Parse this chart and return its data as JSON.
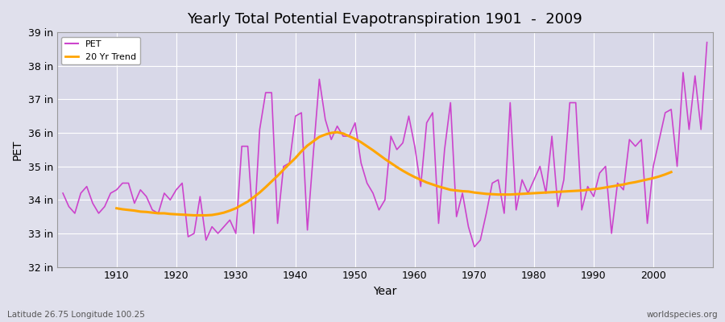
{
  "title": "Yearly Total Potential Evapotranspiration 1901  -  2009",
  "xlabel": "Year",
  "ylabel": "PET",
  "subtitle_left": "Latitude 26.75 Longitude 100.25",
  "subtitle_right": "worldspecies.org",
  "pet_color": "#CC44CC",
  "trend_color": "#FFA500",
  "background_color": "#E0E0EC",
  "plot_bg_color": "#D8D8E8",
  "grid_color": "#FFFFFF",
  "ylim": [
    32,
    39
  ],
  "yticks": [
    32,
    33,
    34,
    35,
    36,
    37,
    38,
    39
  ],
  "ytick_labels": [
    "32 in",
    "33 in",
    "34 in",
    "35 in",
    "36 in",
    "37 in",
    "38 in",
    "39 in"
  ],
  "xlim_left": 1900,
  "xlim_right": 2010,
  "xticks": [
    1910,
    1920,
    1930,
    1940,
    1950,
    1960,
    1970,
    1980,
    1990,
    2000
  ],
  "years": [
    1901,
    1902,
    1903,
    1904,
    1905,
    1906,
    1907,
    1908,
    1909,
    1910,
    1911,
    1912,
    1913,
    1914,
    1915,
    1916,
    1917,
    1918,
    1919,
    1920,
    1921,
    1922,
    1923,
    1924,
    1925,
    1926,
    1927,
    1928,
    1929,
    1930,
    1931,
    1932,
    1933,
    1934,
    1935,
    1936,
    1937,
    1938,
    1939,
    1940,
    1941,
    1942,
    1943,
    1944,
    1945,
    1946,
    1947,
    1948,
    1949,
    1950,
    1951,
    1952,
    1953,
    1954,
    1955,
    1956,
    1957,
    1958,
    1959,
    1960,
    1961,
    1962,
    1963,
    1964,
    1965,
    1966,
    1967,
    1968,
    1969,
    1970,
    1971,
    1972,
    1973,
    1974,
    1975,
    1976,
    1977,
    1978,
    1979,
    1980,
    1981,
    1982,
    1983,
    1984,
    1985,
    1986,
    1987,
    1988,
    1989,
    1990,
    1991,
    1992,
    1993,
    1994,
    1995,
    1996,
    1997,
    1998,
    1999,
    2000,
    2001,
    2002,
    2003,
    2004,
    2005,
    2006,
    2007,
    2008,
    2009
  ],
  "pet_values": [
    34.2,
    33.8,
    33.6,
    34.2,
    34.4,
    33.9,
    33.6,
    33.8,
    34.2,
    34.3,
    34.5,
    34.5,
    33.9,
    34.3,
    34.1,
    33.7,
    33.6,
    34.2,
    34.0,
    34.3,
    34.5,
    32.9,
    33.0,
    34.1,
    32.8,
    33.2,
    33.0,
    33.2,
    33.4,
    33.0,
    35.6,
    35.6,
    33.0,
    36.1,
    37.2,
    37.2,
    33.3,
    35.0,
    35.1,
    36.5,
    36.6,
    33.1,
    35.4,
    37.6,
    36.4,
    35.8,
    36.2,
    35.9,
    35.9,
    36.3,
    35.1,
    34.5,
    34.2,
    33.7,
    34.0,
    35.9,
    35.5,
    35.7,
    36.5,
    35.6,
    34.4,
    36.3,
    36.6,
    33.3,
    35.5,
    36.9,
    33.5,
    34.2,
    33.2,
    32.6,
    32.8,
    33.6,
    34.5,
    34.6,
    33.6,
    36.9,
    33.7,
    34.6,
    34.2,
    34.6,
    35.0,
    34.2,
    35.9,
    33.8,
    34.6,
    36.9,
    36.9,
    33.7,
    34.4,
    34.1,
    34.8,
    35.0,
    33.0,
    34.5,
    34.3,
    35.8,
    35.6,
    35.8,
    33.3,
    35.0,
    35.8,
    36.6,
    36.7,
    35.0,
    37.8,
    36.1,
    37.7,
    36.1,
    38.7
  ],
  "trend_years": [
    1910,
    1911,
    1912,
    1913,
    1914,
    1915,
    1916,
    1917,
    1918,
    1919,
    1920,
    1921,
    1922,
    1923,
    1924,
    1925,
    1926,
    1927,
    1928,
    1929,
    1930,
    1931,
    1932,
    1933,
    1934,
    1935,
    1936,
    1937,
    1938,
    1939,
    1940,
    1941,
    1942,
    1943,
    1944,
    1945,
    1946,
    1947,
    1948,
    1949,
    1950,
    1951,
    1952,
    1953,
    1954,
    1955,
    1956,
    1957,
    1958,
    1959,
    1960,
    1961,
    1962,
    1963,
    1964,
    1965,
    1966,
    1967,
    1968,
    1969,
    1970,
    1971,
    1972,
    1973,
    1974,
    1975,
    1976,
    1977,
    1978,
    1979,
    1980,
    1981,
    1982,
    1983,
    1984,
    1985,
    1986,
    1987,
    1988,
    1989,
    1990,
    1991,
    1992,
    1993,
    1994,
    1995,
    1996,
    1997,
    1998,
    1999,
    2000,
    2001,
    2002,
    2003
  ],
  "trend_values": [
    33.75,
    33.72,
    33.7,
    33.68,
    33.65,
    33.64,
    33.62,
    33.6,
    33.6,
    33.58,
    33.57,
    33.56,
    33.55,
    33.54,
    33.54,
    33.54,
    33.55,
    33.58,
    33.62,
    33.68,
    33.75,
    33.85,
    33.95,
    34.08,
    34.22,
    34.38,
    34.55,
    34.72,
    34.9,
    35.08,
    35.25,
    35.45,
    35.62,
    35.75,
    35.88,
    35.95,
    36.0,
    36.02,
    35.98,
    35.9,
    35.82,
    35.72,
    35.6,
    35.48,
    35.35,
    35.22,
    35.1,
    34.98,
    34.87,
    34.77,
    34.68,
    34.6,
    34.52,
    34.46,
    34.4,
    34.35,
    34.3,
    34.28,
    34.26,
    34.25,
    34.22,
    34.2,
    34.18,
    34.17,
    34.16,
    34.16,
    34.16,
    34.17,
    34.18,
    34.19,
    34.2,
    34.21,
    34.22,
    34.23,
    34.24,
    34.25,
    34.26,
    34.27,
    34.28,
    34.3,
    34.32,
    34.34,
    34.37,
    34.4,
    34.43,
    34.46,
    34.5,
    34.53,
    34.57,
    34.61,
    34.65,
    34.7,
    34.76,
    34.83
  ]
}
